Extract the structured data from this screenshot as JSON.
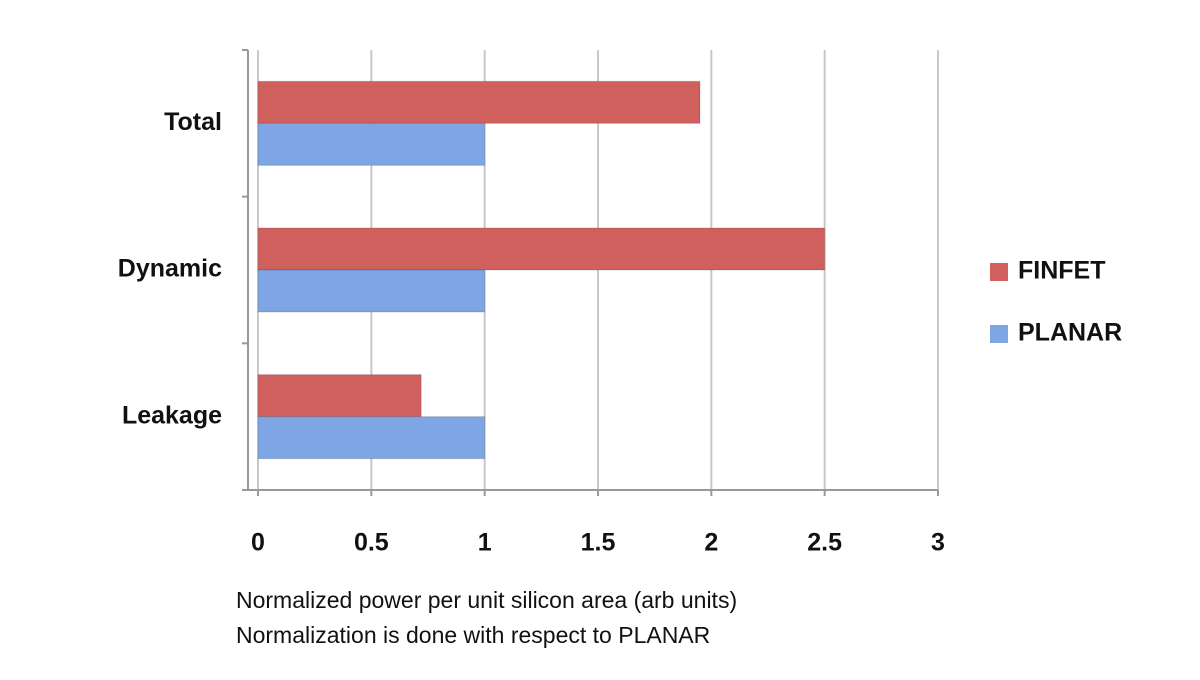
{
  "chart_data": {
    "type": "hbar",
    "categories": [
      "Total",
      "Dynamic",
      "Leakage"
    ],
    "series": [
      {
        "name": "FINFET",
        "color": "#d0605d",
        "values": [
          1.95,
          2.5,
          0.72
        ]
      },
      {
        "name": "PLANAR",
        "color": "#7fa6e4",
        "values": [
          1,
          1,
          1
        ]
      }
    ],
    "xlim": [
      0,
      3
    ],
    "xticks": [
      0,
      0.5,
      1,
      1.5,
      2,
      2.5,
      3
    ],
    "grid": true,
    "legend": "right",
    "xlabel": "Normalized power per unit silicon area (arb units)",
    "note": "Normalization is done with respect to PLANAR"
  }
}
